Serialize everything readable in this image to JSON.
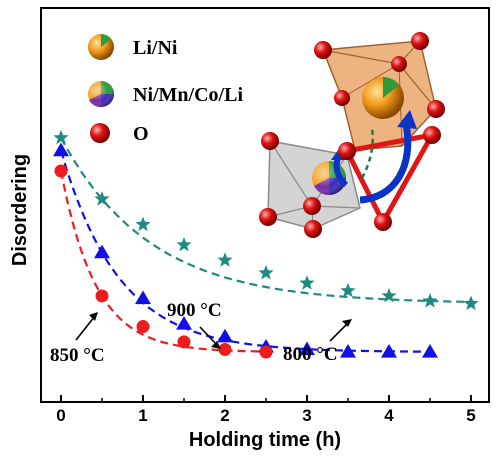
{
  "chart_data": {
    "type": "scatter",
    "xlabel": "Holding time (h)",
    "ylabel": "Disordering",
    "xlim": [
      -0.25,
      5.25
    ],
    "ylim": [
      0,
      1
    ],
    "x_ticks": [
      "0",
      "1",
      "2",
      "3",
      "4",
      "5"
    ],
    "series": [
      {
        "name": "800 °C",
        "marker": "star",
        "color": "#1f8a80",
        "x": [
          0,
          0.5,
          1,
          1.5,
          2,
          2.5,
          3,
          3.5,
          4,
          4.5,
          5
        ],
        "y": [
          0.93,
          0.69,
          0.59,
          0.51,
          0.45,
          0.4,
          0.36,
          0.33,
          0.31,
          0.29,
          0.28
        ]
      },
      {
        "name": "900 °C",
        "marker": "triangle",
        "color": "#1010e6",
        "x": [
          0,
          0.5,
          1,
          1.5,
          2,
          2.5,
          3,
          3.5,
          4,
          4.5
        ],
        "y": [
          0.88,
          0.48,
          0.3,
          0.2,
          0.15,
          0.11,
          0.1,
          0.09,
          0.09,
          0.09
        ]
      },
      {
        "name": "850 °C",
        "marker": "circle",
        "color": "#ee1c1c",
        "x": [
          0,
          0.5,
          1,
          1.5,
          2,
          2.5
        ],
        "y": [
          0.8,
          0.31,
          0.19,
          0.13,
          0.1,
          0.09
        ]
      }
    ],
    "annotations": {
      "a850": "850 °C",
      "a900": "900 °C",
      "a800": "800 °C"
    },
    "legend": {
      "placement": "top-left",
      "items": [
        {
          "label": "Li/Ni",
          "icon": "orange-green-sphere-icon"
        },
        {
          "label": "Ni/Mn/Co/Li",
          "icon": "multicolor-sphere-icon"
        },
        {
          "label": "O",
          "icon": "red-sphere-icon"
        }
      ]
    },
    "colors": {
      "octa_orange": "#e8a061",
      "octa_grey": "#bdbdbd",
      "oxygen": "#e01515",
      "arrow_blue": "#0a33c8"
    }
  }
}
